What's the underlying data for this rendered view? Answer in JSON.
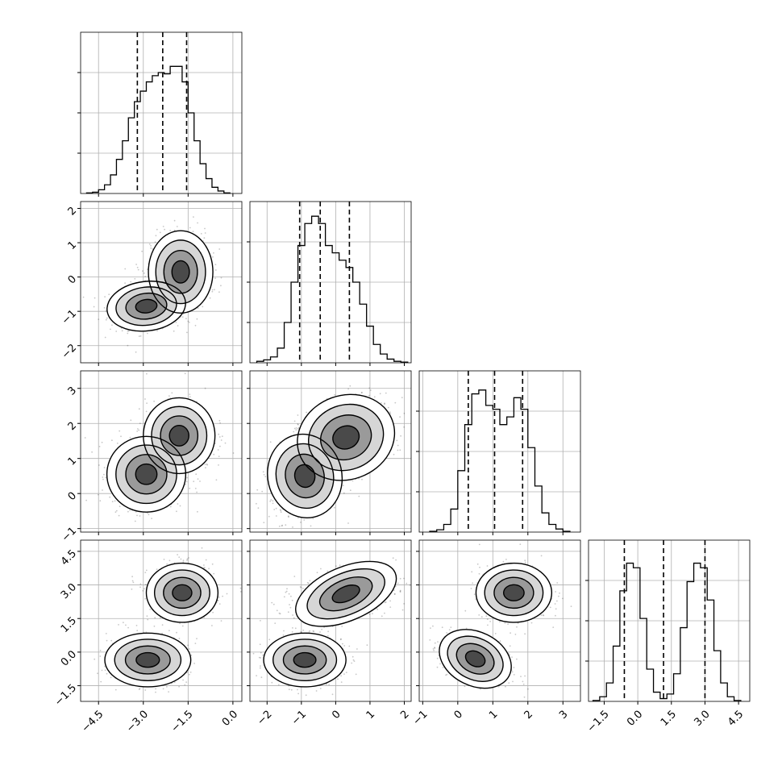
{
  "chart_data": {
    "type": "corner",
    "grid": true,
    "variables": [
      {
        "xlim": [
          -5.1,
          0.3
        ],
        "ticks": [
          -4.5,
          -3.0,
          -1.5,
          0.0
        ],
        "tick_labels": [
          "−4.5",
          "−3.0",
          "−1.5",
          "0.0"
        ]
      },
      {
        "xlim": [
          -2.5,
          2.2
        ],
        "ticks": [
          -2,
          -1,
          0,
          1,
          2
        ],
        "tick_labels": [
          "−2",
          "−1",
          "0",
          "1",
          "2"
        ]
      },
      {
        "xlim": [
          -1.1,
          3.5
        ],
        "ticks": [
          -1,
          0,
          1,
          2,
          3
        ],
        "tick_labels": [
          "−1",
          "0",
          "1",
          "2",
          "3"
        ]
      },
      {
        "xlim": [
          -2.2,
          5.0
        ],
        "ticks": [
          -1.5,
          0.0,
          1.5,
          3.0,
          4.5
        ],
        "tick_labels": [
          "−1.5",
          "0.0",
          "1.5",
          "3.0",
          "4.5"
        ]
      }
    ],
    "histograms": [
      {
        "bins": [
          -4.9,
          -4.7,
          -4.5,
          -4.3,
          -4.1,
          -3.9,
          -3.7,
          -3.5,
          -3.3,
          -3.1,
          -2.9,
          -2.7,
          -2.5,
          -2.3,
          -2.1,
          -1.9,
          -1.7,
          -1.5,
          -1.3,
          -1.1,
          -0.9,
          -0.7,
          -0.5,
          -0.3,
          -0.1
        ],
        "counts": [
          1,
          2,
          6,
          14,
          30,
          55,
          85,
          122,
          148,
          165,
          180,
          190,
          195,
          193,
          205,
          205,
          180,
          130,
          85,
          48,
          24,
          10,
          4,
          1
        ],
        "ylim": [
          0,
          260
        ],
        "quantiles": [
          -3.2,
          -2.35,
          -1.55
        ]
      },
      {
        "bins": [
          -2.3,
          -2.1,
          -1.9,
          -1.7,
          -1.5,
          -1.3,
          -1.1,
          -0.9,
          -0.7,
          -0.5,
          -0.3,
          -0.1,
          0.1,
          0.3,
          0.5,
          0.7,
          0.9,
          1.1,
          1.3,
          1.5,
          1.7,
          1.9,
          2.1
        ],
        "counts": [
          2,
          4,
          8,
          20,
          55,
          110,
          160,
          190,
          200,
          190,
          160,
          150,
          140,
          130,
          110,
          80,
          50,
          25,
          12,
          5,
          2,
          1
        ],
        "ylim": [
          0,
          220
        ],
        "quantiles": [
          -1.05,
          -0.45,
          0.4
        ]
      },
      {
        "bins": [
          -0.8,
          -0.6,
          -0.4,
          -0.2,
          0.0,
          0.2,
          0.4,
          0.6,
          0.8,
          1.0,
          1.2,
          1.4,
          1.6,
          1.8,
          2.0,
          2.2,
          2.4,
          2.6,
          2.8,
          3.0,
          3.2
        ],
        "counts": [
          1,
          3,
          10,
          30,
          80,
          140,
          180,
          185,
          165,
          160,
          140,
          150,
          175,
          160,
          110,
          60,
          25,
          10,
          4,
          1
        ],
        "ylim": [
          0,
          210
        ],
        "quantiles": [
          0.3,
          1.05,
          1.85
        ]
      },
      {
        "bins": [
          -2.0,
          -1.7,
          -1.4,
          -1.1,
          -0.8,
          -0.5,
          -0.2,
          0.1,
          0.4,
          0.7,
          1.0,
          1.3,
          1.6,
          1.9,
          2.2,
          2.5,
          2.8,
          3.1,
          3.4,
          3.7,
          4.0,
          4.3,
          4.6
        ],
        "counts": [
          1,
          5,
          20,
          60,
          120,
          150,
          145,
          90,
          35,
          10,
          3,
          8,
          30,
          80,
          130,
          150,
          145,
          110,
          55,
          20,
          5,
          1
        ],
        "ylim": [
          0,
          175
        ],
        "quantiles": [
          -0.6,
          1.15,
          3.0
        ]
      }
    ],
    "pairs": [
      {
        "x": 0,
        "y": 1,
        "modes": [
          {
            "cx": -2.9,
            "cy": -0.85,
            "sx": 0.55,
            "sy": 0.3,
            "rho": 0.1
          },
          {
            "cx": -1.75,
            "cy": 0.15,
            "sx": 0.45,
            "sy": 0.5,
            "rho": 0.0
          }
        ]
      },
      {
        "x": 0,
        "y": 2,
        "modes": [
          {
            "cx": -2.9,
            "cy": 0.55,
            "sx": 0.55,
            "sy": 0.45,
            "rho": 0.0
          },
          {
            "cx": -1.8,
            "cy": 1.65,
            "sx": 0.5,
            "sy": 0.45,
            "rho": 0.0
          }
        ]
      },
      {
        "x": 1,
        "y": 2,
        "modes": [
          {
            "cx": -0.9,
            "cy": 0.5,
            "sx": 0.45,
            "sy": 0.5,
            "rho": 0.2
          },
          {
            "cx": 0.3,
            "cy": 1.6,
            "sx": 0.6,
            "sy": 0.5,
            "rho": 0.3
          }
        ]
      },
      {
        "x": 0,
        "y": 3,
        "modes": [
          {
            "cx": -2.85,
            "cy": -0.35,
            "sx": 0.6,
            "sy": 0.5,
            "rho": 0.0
          },
          {
            "cx": -1.7,
            "cy": 2.65,
            "sx": 0.5,
            "sy": 0.55,
            "rho": 0.0
          }
        ]
      },
      {
        "x": 1,
        "y": 3,
        "modes": [
          {
            "cx": -0.9,
            "cy": -0.35,
            "sx": 0.5,
            "sy": 0.5,
            "rho": 0.0
          },
          {
            "cx": 0.3,
            "cy": 2.6,
            "sx": 0.65,
            "sy": 0.5,
            "rho": 0.35
          }
        ]
      },
      {
        "x": 2,
        "y": 3,
        "modes": [
          {
            "cx": 0.5,
            "cy": -0.3,
            "sx": 0.45,
            "sy": 0.5,
            "rho": -0.4
          },
          {
            "cx": 1.6,
            "cy": 2.65,
            "sx": 0.45,
            "sy": 0.55,
            "rho": 0.0
          }
        ]
      }
    ]
  }
}
